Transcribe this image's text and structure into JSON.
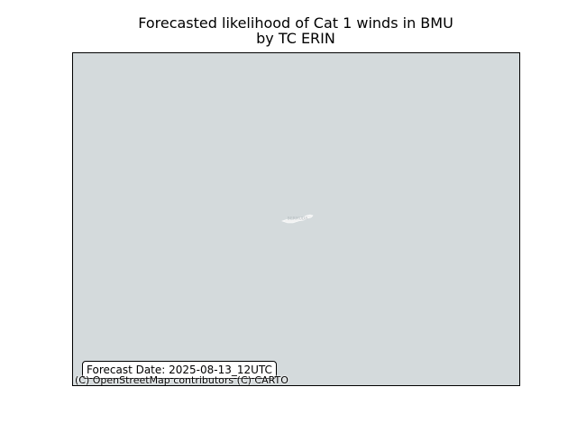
{
  "title": "Forecasted likelihood of Cat 1 winds in BMU\nby TC ERIN",
  "map": {
    "basemap_color": "#d4dadc",
    "land_color": "#f2f2f2",
    "place_label": "BERMUDA",
    "forecast_date_label": "Forecast Date: 2025-08-13_12UTC",
    "attribution": "(C) OpenStreetMap contributors (C) CARTO"
  }
}
